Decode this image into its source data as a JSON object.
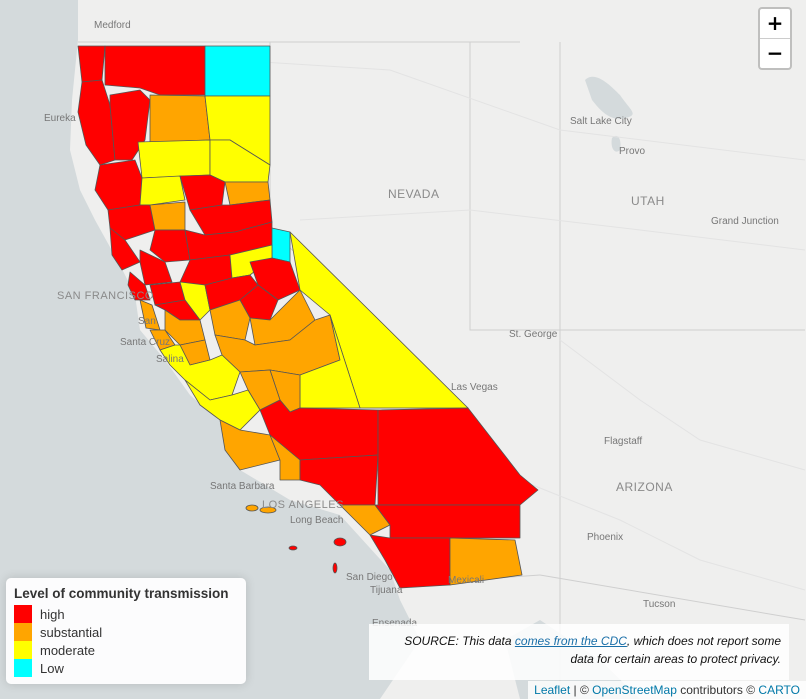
{
  "map": {
    "zoom_in_label": "+",
    "zoom_out_label": "−",
    "colors": {
      "high": "#ff0000",
      "substantial": "#ffa500",
      "moderate": "#ffff00",
      "low": "#00ffff",
      "water": "#d4dadc",
      "land": "#efefee"
    },
    "place_labels": {
      "medford": "Medford",
      "eureka": "Eureka",
      "nevada": "NEVADA",
      "utah": "UTAH",
      "arizona": "ARIZONA",
      "salt_lake_city": "Salt Lake City",
      "provo": "Provo",
      "grand_junction": "Grand Junction",
      "st_george": "St. George",
      "las_vegas": "Las Vegas",
      "flagstaff": "Flagstaff",
      "phoenix": "Phoenix",
      "tucson": "Tucson",
      "san_francisco": "SAN FRANCISCO",
      "san": "San",
      "santa_cruz": "Santa Cruz",
      "salinas": "Salina",
      "santa_barbara": "Santa Barbara",
      "los_angeles": "LOS ANGELES",
      "long_beach": "Long Beach",
      "san_diego": "San Diego",
      "tijuana": "Tijuana",
      "mexicali": "Mexicali",
      "ensenada": "Ensenada"
    }
  },
  "legend": {
    "title": "Level of community transmission",
    "items": [
      {
        "label": "high",
        "color": "#ff0000"
      },
      {
        "label": "substantial",
        "color": "#ffa500"
      },
      {
        "label": "moderate",
        "color": "#ffff00"
      },
      {
        "label": "Low",
        "color": "#00ffff"
      }
    ]
  },
  "source": {
    "prefix": "SOURCE: This data ",
    "link_text": "comes from the CDC",
    "suffix": ", which does not report some",
    "line2": "data for certain areas to protect privacy."
  },
  "attribution": {
    "leaflet": "Leaflet",
    "sep1": " | © ",
    "osm": "OpenStreetMap",
    "contributors": " contributors © ",
    "carto": "CARTO"
  }
}
